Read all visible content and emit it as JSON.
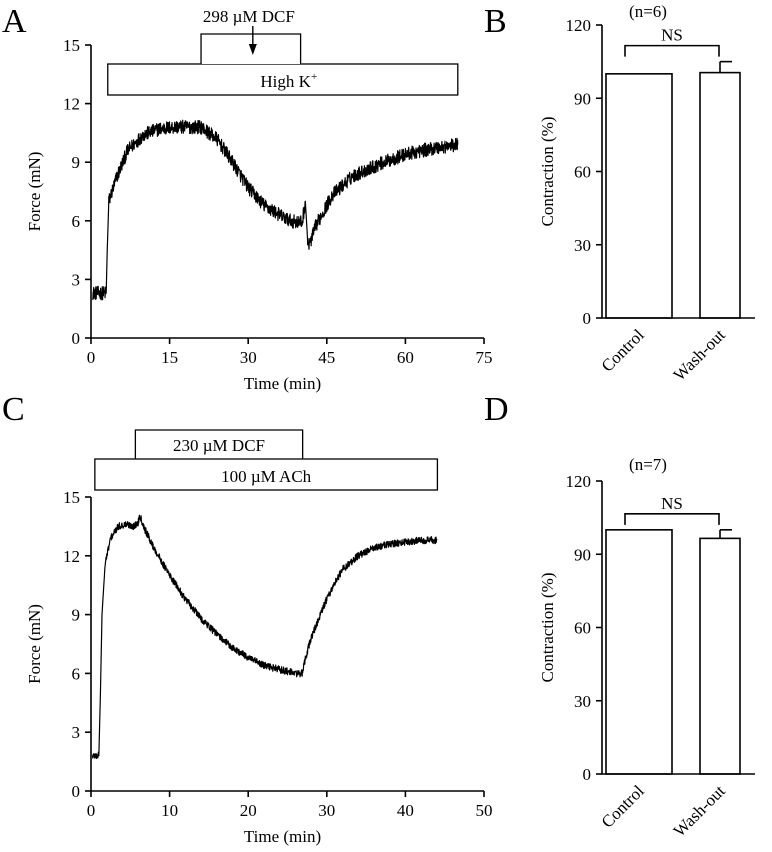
{
  "chart_data": [
    {
      "id": "A",
      "type": "line",
      "panel_label": "A",
      "xlabel": "Time (min)",
      "ylabel": "Force (mN)",
      "xlim": [
        0,
        75
      ],
      "ylim": [
        0,
        15
      ],
      "xticks": [
        0,
        15,
        30,
        45,
        60,
        75
      ],
      "yticks": [
        0,
        3,
        6,
        9,
        12,
        15
      ],
      "annotations": {
        "outer": {
          "label": "High K",
          "superscript": "+",
          "start": 3.2,
          "end": 70
        },
        "inner": {
          "label": "298 µM DCF",
          "start": 21,
          "end": 40
        },
        "arrow": {
          "at": 30.5
        }
      },
      "noise": 0.35,
      "series": [
        {
          "name": "Force",
          "x": [
            0.3,
            2.9,
            3.1,
            3.4,
            5,
            7,
            10,
            13,
            16,
            19,
            21,
            24,
            27,
            30,
            33,
            36,
            38,
            40.3,
            40.9,
            41.3,
            41.6,
            43,
            46,
            50,
            55,
            60,
            65,
            70
          ],
          "y": [
            2.3,
            2.3,
            4.5,
            7.0,
            8.3,
            9.6,
            10.4,
            10.7,
            10.8,
            10.8,
            10.8,
            10.2,
            9.0,
            7.7,
            6.8,
            6.3,
            6.0,
            5.9,
            7.0,
            5.2,
            4.7,
            5.8,
            7.3,
            8.3,
            8.9,
            9.4,
            9.7,
            9.9
          ]
        }
      ]
    },
    {
      "id": "B",
      "type": "bar",
      "panel_label": "B",
      "n_label": "(n=6)",
      "sig_label": "NS",
      "ylabel": "Contraction (%)",
      "ylim": [
        0,
        120
      ],
      "yticks": [
        0,
        30,
        60,
        90,
        120
      ],
      "categories": [
        "Control",
        "Wash-out"
      ],
      "values": [
        100,
        100.5
      ],
      "errors": [
        0,
        4.5
      ]
    },
    {
      "id": "C",
      "type": "line",
      "panel_label": "C",
      "xlabel": "Time (min)",
      "ylabel": "Force (mN)",
      "xlim": [
        0,
        50
      ],
      "ylim": [
        0,
        15
      ],
      "xticks": [
        0,
        10,
        20,
        30,
        40,
        50
      ],
      "yticks": [
        0,
        3,
        6,
        9,
        12,
        15
      ],
      "annotations": {
        "outer": {
          "label": "100 µM ACh",
          "superscript": "",
          "start": 1.0,
          "end": 44.2
        },
        "inner": {
          "label": "230 µM DCF",
          "start": 5.9,
          "end": 26.8
        }
      },
      "noise": 0.18,
      "series": [
        {
          "name": "Force",
          "x": [
            0.2,
            1.0,
            1.2,
            1.4,
            1.8,
            2.5,
            3.5,
            4.5,
            5.5,
            6.0,
            6.2,
            6.8,
            8,
            10,
            12,
            14,
            16,
            18,
            20,
            22,
            24,
            26,
            26.9,
            27.3,
            28,
            29,
            30,
            31,
            32,
            34,
            36,
            38,
            40,
            42,
            44
          ],
          "y": [
            1.8,
            1.8,
            5.0,
            9.0,
            11.6,
            12.9,
            13.5,
            13.6,
            13.5,
            13.7,
            14.1,
            13.4,
            12.4,
            11.0,
            9.8,
            8.8,
            8.0,
            7.3,
            6.8,
            6.4,
            6.2,
            6.0,
            6.0,
            6.8,
            7.8,
            8.8,
            9.8,
            10.6,
            11.3,
            12.0,
            12.4,
            12.6,
            12.7,
            12.8,
            12.8
          ]
        }
      ]
    },
    {
      "id": "D",
      "type": "bar",
      "panel_label": "D",
      "n_label": "(n=7)",
      "sig_label": "NS",
      "ylabel": "Contraction (%)",
      "ylim": [
        0,
        120
      ],
      "yticks": [
        0,
        30,
        60,
        90,
        120
      ],
      "categories": [
        "Control",
        "Wash-out"
      ],
      "values": [
        100,
        96.5
      ],
      "errors": [
        0,
        3.5
      ]
    }
  ]
}
